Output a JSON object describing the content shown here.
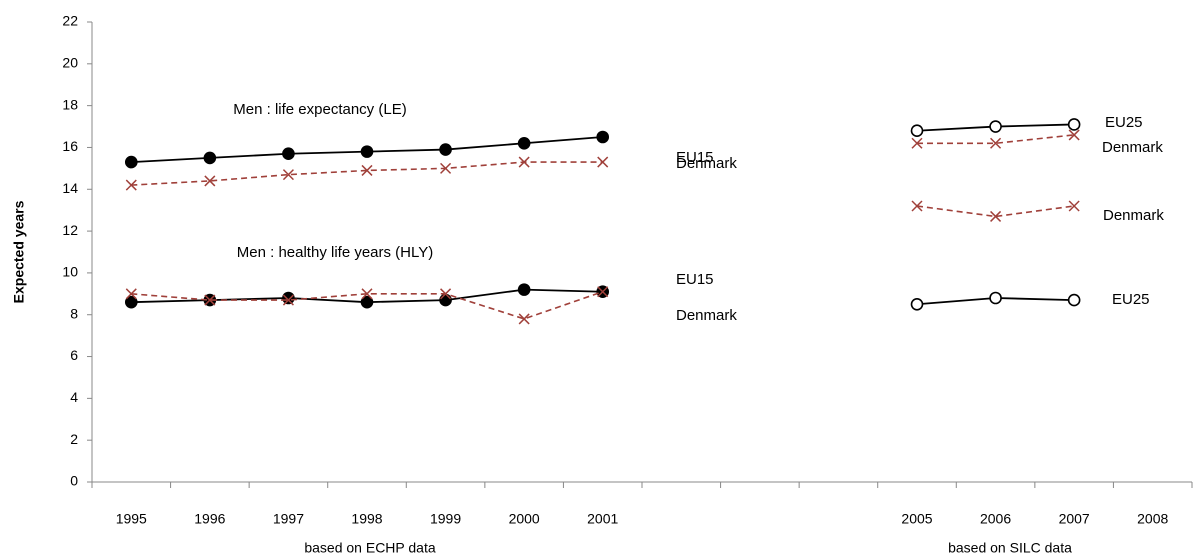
{
  "chart_data": {
    "type": "line",
    "y_label": "Expected years",
    "annotations": [
      "Men : life expectancy (LE)",
      "Men : healthy life years (HLY)"
    ],
    "group_labels": [
      "based on ECHP data",
      "based on SILC data"
    ],
    "categories": [
      "1995",
      "1996",
      "1997",
      "1998",
      "1999",
      "2000",
      "2001",
      null,
      null,
      null,
      "2005",
      "2006",
      "2007",
      "2008"
    ],
    "ylim": [
      0,
      22
    ],
    "yticks": [
      0,
      2,
      4,
      6,
      8,
      10,
      12,
      14,
      16,
      18,
      20,
      22
    ],
    "grid": false,
    "series": [
      {
        "name": "EU15",
        "color": "#000000",
        "dashed": false,
        "marker": "filled-circle",
        "values": [
          15.3,
          15.5,
          15.7,
          15.8,
          15.9,
          16.2,
          16.5,
          null,
          null,
          null,
          null,
          null,
          null,
          null
        ]
      },
      {
        "name": "Denmark",
        "color": "#a0403a",
        "dashed": true,
        "marker": "cross",
        "values": [
          14.2,
          14.4,
          14.7,
          14.9,
          15.0,
          15.3,
          15.3,
          null,
          null,
          null,
          null,
          null,
          null,
          null
        ]
      },
      {
        "name": "EU15",
        "color": "#000000",
        "dashed": false,
        "marker": "filled-circle",
        "values": [
          8.6,
          8.7,
          8.8,
          8.6,
          8.7,
          9.2,
          9.1,
          null,
          null,
          null,
          null,
          null,
          null,
          null
        ]
      },
      {
        "name": "Denmark",
        "color": "#a0403a",
        "dashed": true,
        "marker": "cross",
        "values": [
          9.0,
          8.7,
          8.7,
          9.0,
          9.0,
          7.8,
          9.1,
          null,
          null,
          null,
          null,
          null,
          null,
          null
        ]
      },
      {
        "name": "EU25",
        "color": "#000000",
        "dashed": false,
        "marker": "open-circle",
        "values": [
          null,
          null,
          null,
          null,
          null,
          null,
          null,
          null,
          null,
          null,
          16.8,
          17.0,
          17.1,
          null
        ]
      },
      {
        "name": "Denmark",
        "color": "#a0403a",
        "dashed": true,
        "marker": "cross",
        "values": [
          null,
          null,
          null,
          null,
          null,
          null,
          null,
          null,
          null,
          null,
          16.2,
          16.2,
          16.6,
          null
        ]
      },
      {
        "name": "Denmark",
        "color": "#a0403a",
        "dashed": true,
        "marker": "cross",
        "values": [
          null,
          null,
          null,
          null,
          null,
          null,
          null,
          null,
          null,
          null,
          13.2,
          12.7,
          13.2,
          null
        ]
      },
      {
        "name": "EU25",
        "color": "#000000",
        "dashed": false,
        "marker": "open-circle",
        "values": [
          null,
          null,
          null,
          null,
          null,
          null,
          null,
          null,
          null,
          null,
          8.5,
          8.8,
          8.7,
          null
        ]
      }
    ]
  }
}
